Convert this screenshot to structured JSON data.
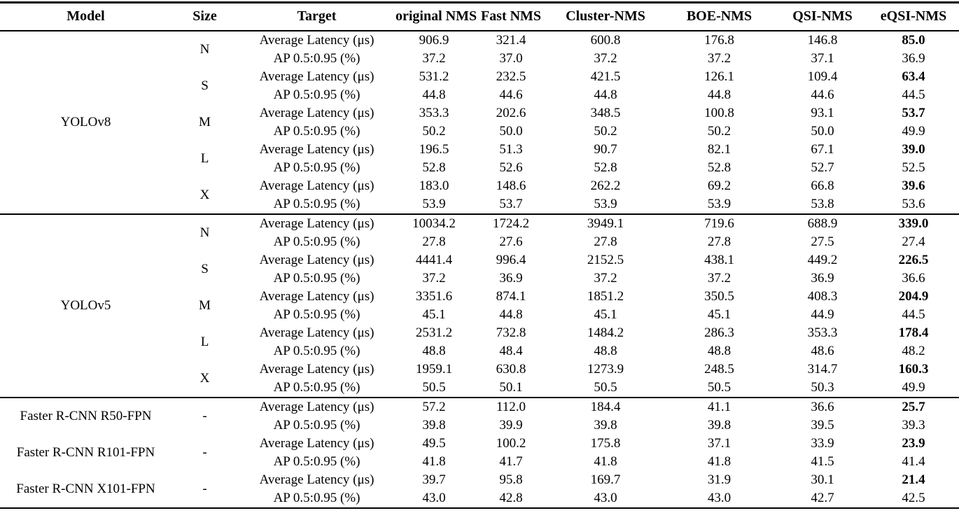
{
  "table": {
    "columns": [
      "Model",
      "Size",
      "Target",
      "original NMS",
      "Fast NMS",
      "Cluster-NMS",
      "BOE-NMS",
      "QSI-NMS",
      "eQSI-NMS"
    ],
    "target_labels": {
      "latency": "Average Latency (μs)",
      "ap": "AP 0.5:0.95 (%)"
    },
    "groups": [
      {
        "model": "YOLOv8",
        "rows": [
          {
            "size": "N",
            "latency": [
              "906.9",
              "321.4",
              "600.8",
              "176.8",
              "146.8",
              "85.0"
            ],
            "ap": [
              "37.2",
              "37.0",
              "37.2",
              "37.2",
              "37.1",
              "36.9"
            ]
          },
          {
            "size": "S",
            "latency": [
              "531.2",
              "232.5",
              "421.5",
              "126.1",
              "109.4",
              "63.4"
            ],
            "ap": [
              "44.8",
              "44.6",
              "44.8",
              "44.8",
              "44.6",
              "44.5"
            ]
          },
          {
            "size": "M",
            "latency": [
              "353.3",
              "202.6",
              "348.5",
              "100.8",
              "93.1",
              "53.7"
            ],
            "ap": [
              "50.2",
              "50.0",
              "50.2",
              "50.2",
              "50.0",
              "49.9"
            ]
          },
          {
            "size": "L",
            "latency": [
              "196.5",
              "51.3",
              "90.7",
              "82.1",
              "67.1",
              "39.0"
            ],
            "ap": [
              "52.8",
              "52.6",
              "52.8",
              "52.8",
              "52.7",
              "52.5"
            ]
          },
          {
            "size": "X",
            "latency": [
              "183.0",
              "148.6",
              "262.2",
              "69.2",
              "66.8",
              "39.6"
            ],
            "ap": [
              "53.9",
              "53.7",
              "53.9",
              "53.9",
              "53.8",
              "53.6"
            ]
          }
        ]
      },
      {
        "model": "YOLOv5",
        "rows": [
          {
            "size": "N",
            "latency": [
              "10034.2",
              "1724.2",
              "3949.1",
              "719.6",
              "688.9",
              "339.0"
            ],
            "ap": [
              "27.8",
              "27.6",
              "27.8",
              "27.8",
              "27.5",
              "27.4"
            ]
          },
          {
            "size": "S",
            "latency": [
              "4441.4",
              "996.4",
              "2152.5",
              "438.1",
              "449.2",
              "226.5"
            ],
            "ap": [
              "37.2",
              "36.9",
              "37.2",
              "37.2",
              "36.9",
              "36.6"
            ]
          },
          {
            "size": "M",
            "latency": [
              "3351.6",
              "874.1",
              "1851.2",
              "350.5",
              "408.3",
              "204.9"
            ],
            "ap": [
              "45.1",
              "44.8",
              "45.1",
              "45.1",
              "44.9",
              "44.5"
            ]
          },
          {
            "size": "L",
            "latency": [
              "2531.2",
              "732.8",
              "1484.2",
              "286.3",
              "353.3",
              "178.4"
            ],
            "ap": [
              "48.8",
              "48.4",
              "48.8",
              "48.8",
              "48.6",
              "48.2"
            ]
          },
          {
            "size": "X",
            "latency": [
              "1959.1",
              "630.8",
              "1273.9",
              "248.5",
              "314.7",
              "160.3"
            ],
            "ap": [
              "50.5",
              "50.1",
              "50.5",
              "50.5",
              "50.3",
              "49.9"
            ]
          }
        ]
      },
      {
        "model": "Faster R-CNN R50-FPN",
        "rows": [
          {
            "size": "-",
            "latency": [
              "57.2",
              "112.0",
              "184.4",
              "41.1",
              "36.6",
              "25.7"
            ],
            "ap": [
              "39.8",
              "39.9",
              "39.8",
              "39.8",
              "39.5",
              "39.3"
            ]
          }
        ]
      },
      {
        "model": "Faster R-CNN R101-FPN",
        "rows": [
          {
            "size": "-",
            "latency": [
              "49.5",
              "100.2",
              "175.8",
              "37.1",
              "33.9",
              "23.9"
            ],
            "ap": [
              "41.8",
              "41.7",
              "41.8",
              "41.8",
              "41.5",
              "41.4"
            ]
          }
        ]
      },
      {
        "model": "Faster R-CNN X101-FPN",
        "rows": [
          {
            "size": "-",
            "latency": [
              "39.7",
              "95.8",
              "169.7",
              "31.9",
              "30.1",
              "21.4"
            ],
            "ap": [
              "43.0",
              "42.8",
              "43.0",
              "43.0",
              "42.7",
              "42.5"
            ]
          }
        ]
      }
    ]
  }
}
